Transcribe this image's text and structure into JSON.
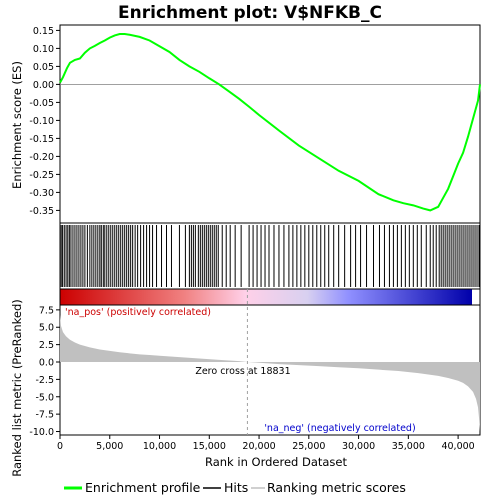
{
  "chart_data": {
    "type": "line",
    "title": "Enrichment plot: V$NFKB_C",
    "es_panel": {
      "ylabel": "Enrichment score (ES)",
      "ylim": [
        -0.385,
        0.165
      ],
      "yticks": [
        0.15,
        0.1,
        0.05,
        0.0,
        -0.05,
        -0.1,
        -0.15,
        -0.2,
        -0.25,
        -0.3,
        -0.35
      ],
      "ytick_labels": [
        "0.15",
        "0.10",
        "0.05",
        "0.00",
        "-0.05",
        "-0.10",
        "-0.15",
        "-0.20",
        "-0.25",
        "-0.30",
        "-0.35"
      ],
      "series": [
        {
          "name": "Enrichment profile",
          "color": "#00ff00",
          "x": [
            0,
            300,
            700,
            1000,
            1500,
            2000,
            2500,
            3000,
            3500,
            4000,
            4500,
            5000,
            5500,
            6000,
            6500,
            7000,
            8000,
            9000,
            10000,
            11000,
            12000,
            13000,
            14000,
            15000,
            16000,
            17000,
            18000,
            19000,
            20000,
            22000,
            24000,
            26000,
            28000,
            30000,
            32000,
            33500,
            34500,
            35500,
            36500,
            37200,
            38000,
            38500,
            39000,
            39500,
            40000,
            40500,
            41000,
            41500,
            42000,
            42200
          ],
          "y": [
            0.005,
            0.02,
            0.045,
            0.06,
            0.068,
            0.072,
            0.088,
            0.1,
            0.107,
            0.115,
            0.122,
            0.13,
            0.136,
            0.14,
            0.14,
            0.138,
            0.132,
            0.122,
            0.106,
            0.09,
            0.068,
            0.05,
            0.035,
            0.017,
            0.0,
            -0.02,
            -0.04,
            -0.062,
            -0.085,
            -0.128,
            -0.17,
            -0.205,
            -0.24,
            -0.268,
            -0.305,
            -0.322,
            -0.33,
            -0.336,
            -0.345,
            -0.35,
            -0.34,
            -0.315,
            -0.29,
            -0.255,
            -0.22,
            -0.19,
            -0.145,
            -0.095,
            -0.045,
            0.0
          ]
        }
      ],
      "zero_line": true
    },
    "hits_panel": {
      "name": "Hits",
      "hit_ranks": [
        120,
        260,
        430,
        610,
        780,
        940,
        1100,
        1300,
        1500,
        1700,
        1900,
        2100,
        2300,
        2500,
        2750,
        3000,
        3200,
        3400,
        3600,
        3800,
        4000,
        4150,
        4350,
        4500,
        4700,
        4900,
        5100,
        5300,
        5500,
        5700,
        5900,
        6100,
        6300,
        6500,
        6700,
        6900,
        7100,
        7300,
        7550,
        7800,
        8100,
        8400,
        8700,
        9000,
        9300,
        9700,
        10200,
        10700,
        11200,
        12000,
        12600,
        13000,
        13200,
        13400,
        13600,
        13900,
        14100,
        14300,
        14500,
        14700,
        14900,
        15100,
        15300,
        15500,
        15700,
        15900,
        16300,
        16700,
        17100,
        17600,
        18200,
        19000,
        19400,
        19800,
        20200,
        20600,
        21000,
        21500,
        22000,
        22500,
        23000,
        23400,
        23800,
        24200,
        24600,
        25000,
        25400,
        25800,
        26200,
        26600,
        27000,
        27500,
        28000,
        28600,
        29200,
        29700,
        30200,
        30800,
        31500,
        32100,
        32600,
        33100,
        33500,
        33900,
        34300,
        34700,
        35100,
        35500,
        35900,
        36300,
        36800,
        37200,
        37500,
        37800,
        38100,
        38300,
        38500,
        38700,
        38900,
        39100,
        39300,
        39500,
        39700,
        39900,
        40100,
        40300,
        40500,
        40700,
        40900,
        41100,
        41300,
        41500,
        41700,
        41900,
        42100
      ]
    },
    "heatmap_bar": {
      "low_color": "#ff0000",
      "mid_color": "#ffffff",
      "high_color": "#0000ff"
    },
    "metric_panel": {
      "name": "Ranking metric scores",
      "ylabel": "Ranked list metric (PreRanked)",
      "ylim": [
        -10.5,
        8.2
      ],
      "yticks": [
        7.5,
        5.0,
        2.5,
        0.0,
        -2.5,
        -5.0,
        -7.5,
        -10.0
      ],
      "ytick_labels": [
        "7.5",
        "5.0",
        "2.5",
        "0.0",
        "-2.5",
        "-5.0",
        "-7.5",
        "-10.0"
      ],
      "fill_color": "#c0c0c0",
      "x": [
        0,
        100,
        300,
        600,
        1000,
        1500,
        2000,
        3000,
        4000,
        5000,
        6000,
        7000,
        8000,
        9000,
        10000,
        12000,
        14000,
        16000,
        18000,
        18831,
        20000,
        22000,
        24000,
        26000,
        28000,
        30000,
        32000,
        34000,
        36000,
        37000,
        38000,
        39000,
        40000,
        40500,
        41000,
        41500,
        41800,
        42000,
        42100,
        42200
      ],
      "y": [
        6.8,
        5.2,
        4.3,
        3.7,
        3.2,
        2.8,
        2.5,
        2.1,
        1.8,
        1.6,
        1.4,
        1.25,
        1.1,
        1.0,
        0.9,
        0.7,
        0.5,
        0.3,
        0.12,
        0.0,
        -0.1,
        -0.3,
        -0.45,
        -0.6,
        -0.75,
        -0.9,
        -1.1,
        -1.3,
        -1.6,
        -1.8,
        -2.0,
        -2.3,
        -2.7,
        -3.0,
        -3.5,
        -4.3,
        -5.3,
        -6.5,
        -8.0,
        -10.0
      ],
      "zero_cross": 18831,
      "zero_cross_label": "Zero cross at 18831",
      "pos_label": "'na_pos' (positively correlated)",
      "neg_label": "'na_neg' (negatively correlated)",
      "pos_label_color": "#cc0000",
      "neg_label_color": "#0000cc"
    },
    "xlabel": "Rank in Ordered Dataset",
    "xlim": [
      0,
      42200
    ],
    "xticks": [
      0,
      5000,
      10000,
      15000,
      20000,
      25000,
      30000,
      35000,
      40000
    ],
    "xtick_labels": [
      "0",
      "5,000",
      "10,000",
      "15,000",
      "20,000",
      "25,000",
      "30,000",
      "35,000",
      "40,000"
    ],
    "legend": {
      "position": "bottom",
      "items": [
        {
          "label": "Enrichment profile",
          "color": "#00ff00",
          "style": "line"
        },
        {
          "label": "Hits",
          "color": "#000000",
          "style": "line"
        },
        {
          "label": "Ranking metric scores",
          "color": "#c0c0c0",
          "style": "line"
        }
      ]
    }
  }
}
